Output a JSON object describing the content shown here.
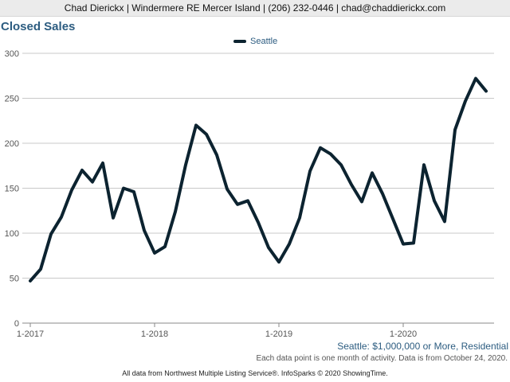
{
  "header": {
    "text": "Chad Dierickx | Windermere RE Mercer Island | (206) 232-0446 | chad@chaddierickx.com"
  },
  "chart_data": {
    "type": "line",
    "title": "Closed Sales",
    "xlabel": "",
    "ylabel": "",
    "ylim": [
      0,
      300
    ],
    "yticks": [
      0,
      50,
      100,
      150,
      200,
      250,
      300
    ],
    "xticks": [
      {
        "label": "1-2017",
        "index": 0
      },
      {
        "label": "1-2018",
        "index": 12
      },
      {
        "label": "1-2019",
        "index": 24
      },
      {
        "label": "1-2020",
        "index": 36
      }
    ],
    "grid": true,
    "legend": "top-center",
    "series": [
      {
        "name": "Seattle",
        "color": "#0c2330",
        "values": [
          47,
          60,
          99,
          118,
          148,
          170,
          157,
          178,
          117,
          150,
          146,
          103,
          78,
          85,
          124,
          176,
          220,
          210,
          187,
          149,
          132,
          136,
          112,
          84,
          68,
          88,
          117,
          169,
          195,
          188,
          176,
          154,
          135,
          167,
          144,
          116,
          88,
          89,
          176,
          136,
          113,
          215,
          247,
          272,
          258
        ]
      }
    ]
  },
  "captions": {
    "series_filter": "Seattle: $1,000,000 or More, Residential",
    "note": "Each data point is one month of activity. Data is from October 24, 2020."
  },
  "footer": {
    "text": "All data from Northwest Multiple Listing Service®. InfoSparks © 2020 ShowingTime."
  }
}
